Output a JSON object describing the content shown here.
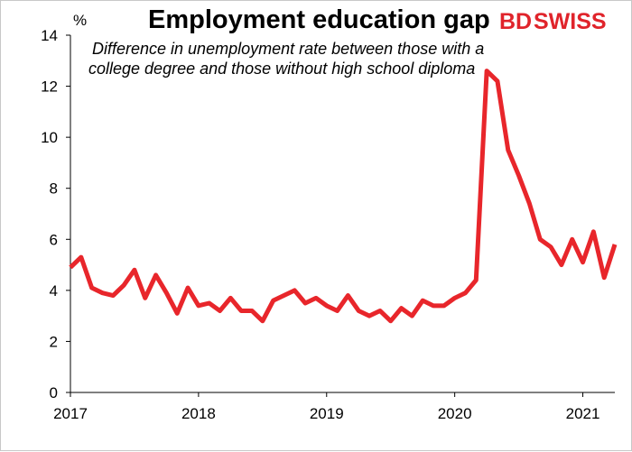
{
  "title": "Employment education gap",
  "subtitle_lines": [
    "Difference in unemployment rate between those with a",
    "college degree and those without high school diploma"
  ],
  "brand": {
    "prefix": "BD",
    "suffix": "SWISS",
    "color": "#e0242b"
  },
  "chart_data": {
    "type": "line",
    "title": "Employment education gap",
    "ylabel": "%",
    "xlabel": "",
    "ylim": [
      0,
      14
    ],
    "yticks": [
      0,
      2,
      4,
      6,
      8,
      10,
      12,
      14
    ],
    "x_tick_labels": [
      "2017",
      "2018",
      "2019",
      "2020",
      "2021"
    ],
    "grid": false,
    "line_color": "#e8262b",
    "series": [
      {
        "x_start": "2017-01",
        "frequency": "monthly",
        "values": [
          4.9,
          5.3,
          4.1,
          3.9,
          3.8,
          4.2,
          4.8,
          3.7,
          4.6,
          3.9,
          3.1,
          4.1,
          3.4,
          3.5,
          3.2,
          3.7,
          3.2,
          3.2,
          2.8,
          3.6,
          3.8,
          4.0,
          3.5,
          3.7,
          3.4,
          3.2,
          3.8,
          3.2,
          3.0,
          3.2,
          2.8,
          3.3,
          3.0,
          3.6,
          3.4,
          3.4,
          3.7,
          3.9,
          4.4,
          12.6,
          12.2,
          9.5,
          8.5,
          7.4,
          6.0,
          5.7,
          5.0,
          6.0,
          5.1,
          6.3,
          4.5,
          5.8
        ]
      }
    ]
  }
}
